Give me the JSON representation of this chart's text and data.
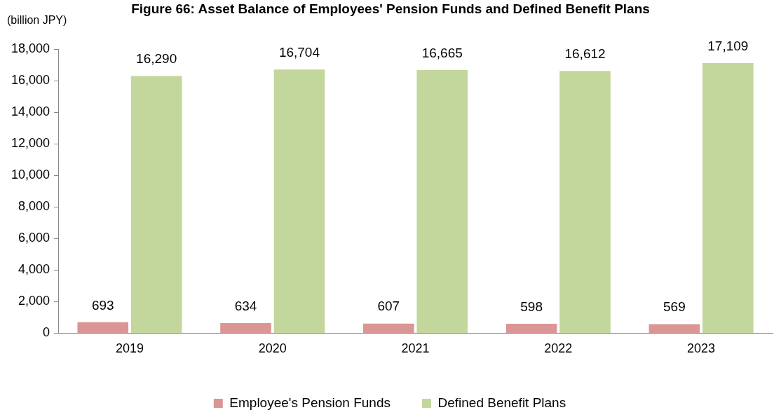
{
  "chart_data": {
    "type": "bar",
    "title": "Figure 66: Asset Balance of Employees' Pension Funds and Defined Benefit Plans",
    "ylabel": "(billion JPY)",
    "categories": [
      "2019",
      "2020",
      "2021",
      "2022",
      "2023"
    ],
    "series": [
      {
        "name": "Employee's Pension Funds",
        "color": "#d99694",
        "values": [
          693,
          634,
          607,
          598,
          569
        ],
        "value_labels": [
          "693",
          "634",
          "607",
          "598",
          "569"
        ]
      },
      {
        "name": "Defined Benefit Plans",
        "color": "#c3d69b",
        "values": [
          16290,
          16704,
          16665,
          16612,
          17109
        ],
        "value_labels": [
          "16,290",
          "16,704",
          "16,665",
          "16,612",
          "17,109"
        ]
      }
    ],
    "ylim": [
      0,
      18000
    ],
    "yticks": [
      0,
      {
        "value": 2000,
        "label": "2,000"
      },
      {
        "value": 4000,
        "label": "4,000"
      },
      {
        "value": 6000,
        "label": "6,000"
      },
      {
        "value": 8000,
        "label": "8,000"
      },
      {
        "value": 10000,
        "label": "10,000"
      },
      {
        "value": 12000,
        "label": "12,000"
      },
      {
        "value": 14000,
        "label": "14,000"
      },
      {
        "value": 16000,
        "label": "16,000"
      },
      {
        "value": 18000,
        "label": "18,000"
      }
    ],
    "grid": false,
    "legend": "bottom"
  }
}
